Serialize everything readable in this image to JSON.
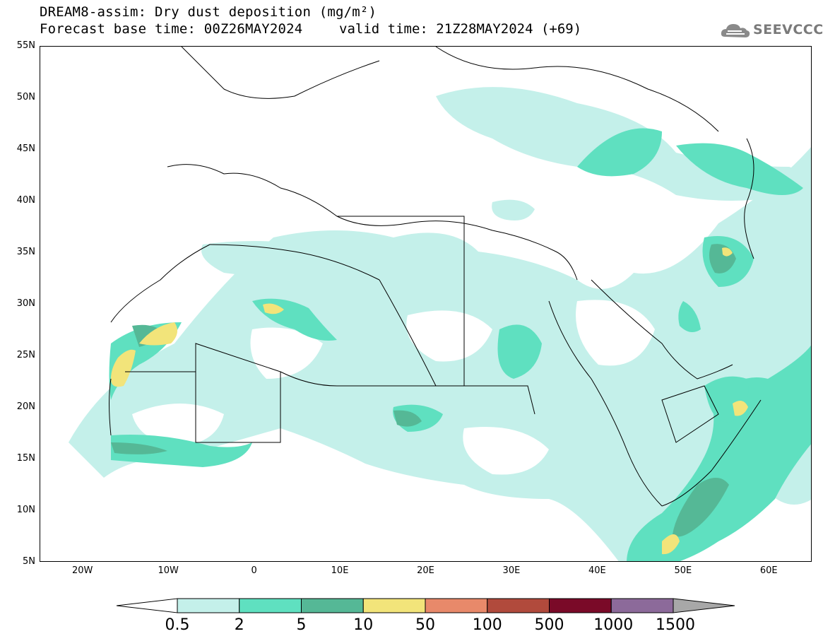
{
  "title": {
    "line1": "DREAM8-assim: Dry dust deposition (mg/m²)",
    "line2_left": "Forecast base time: 00Z26MAY2024",
    "line2_right": "valid time: 21Z28MAY2024 (+69)"
  },
  "logo": {
    "text": "SEEVCCC",
    "icon": "cloud-logo-icon"
  },
  "axes": {
    "lat_labels": [
      "55N",
      "50N",
      "45N",
      "40N",
      "35N",
      "30N",
      "25N",
      "20N",
      "15N",
      "10N",
      "5N"
    ],
    "lon_labels": [
      "20W",
      "10W",
      "0",
      "10E",
      "20E",
      "30E",
      "40E",
      "50E",
      "60E"
    ],
    "lat_range": [
      5,
      55
    ],
    "lon_range": [
      -25,
      65
    ]
  },
  "legend": {
    "levels": [
      "0.5",
      "2",
      "5",
      "10",
      "50",
      "100",
      "500",
      "1000",
      "1500"
    ],
    "colors": [
      "#c4f0ea",
      "#5fe0c0",
      "#55b896",
      "#f2e47a",
      "#e8896a",
      "#b14a3c",
      "#7a0a28",
      "#8c6a9a"
    ],
    "under_color": "#ffffff",
    "over_color": "#a8a8a8"
  },
  "colors": {
    "sea": "#ffffff",
    "land": "#ffffff",
    "border": "#000000"
  }
}
